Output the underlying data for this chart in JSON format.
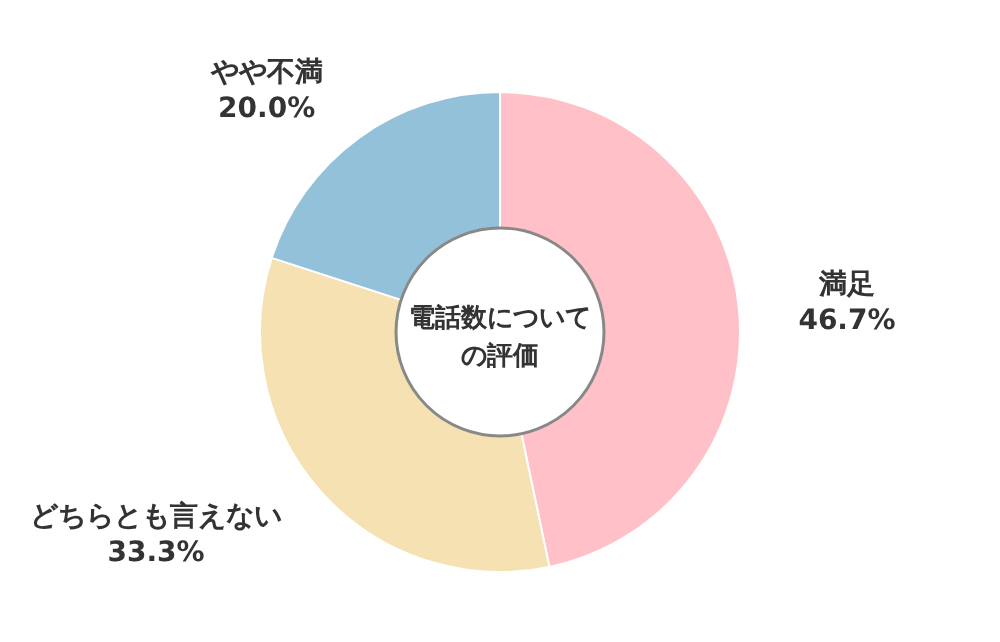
{
  "chart_data": {
    "type": "donut",
    "title": "電話数についての評価",
    "categories": [
      "満足",
      "どちらとも言えない",
      "やや不満"
    ],
    "values": [
      46.7,
      33.3,
      20.0
    ],
    "value_labels": [
      "46.7%",
      "33.3%",
      "20.0%"
    ],
    "colors": [
      "#ffc1c7",
      "#f5e1b1",
      "#93c1da"
    ]
  }
}
